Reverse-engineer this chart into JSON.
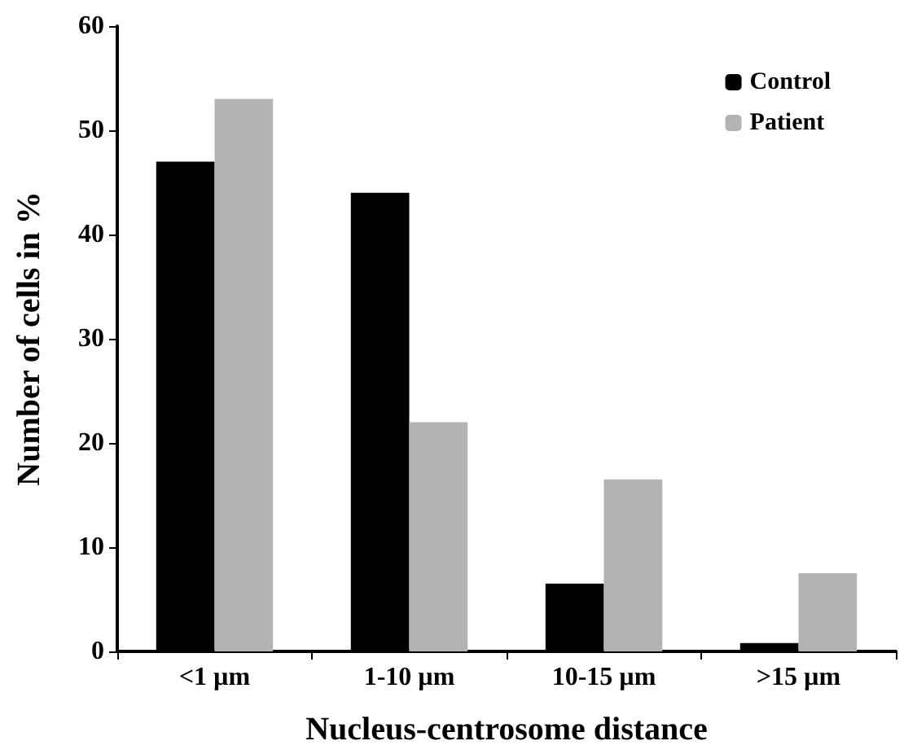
{
  "chart_data": {
    "type": "bar",
    "xlabel": "Nucleus-centrosome distance",
    "ylabel": "Number of cells in %",
    "categories": [
      "<1 µm",
      "1-10 µm",
      "10-15 µm",
      ">15 µm"
    ],
    "series": [
      {
        "name": "Control",
        "color": "#000000",
        "values": [
          47,
          44,
          6.5,
          0.8
        ]
      },
      {
        "name": "Patient",
        "color": "#b3b3b3",
        "values": [
          53,
          22,
          16.5,
          7.5
        ]
      }
    ],
    "ylim": [
      0,
      60
    ],
    "yticks": [
      0,
      10,
      20,
      30,
      40,
      50,
      60
    ],
    "grid": false,
    "legend": "top right"
  }
}
